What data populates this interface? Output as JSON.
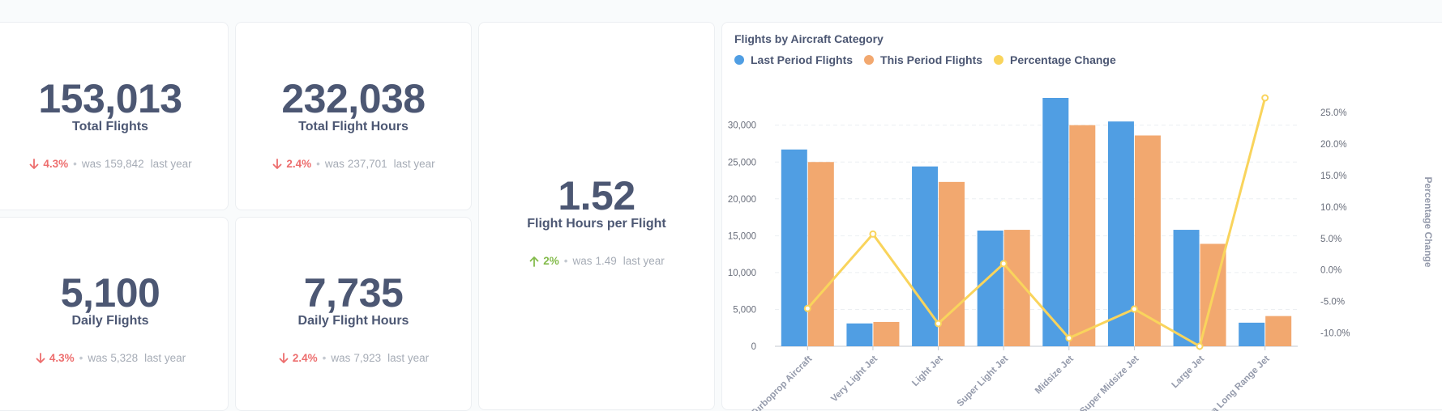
{
  "kpis": {
    "total_flights": {
      "value": "153,013",
      "label": "Total Flights",
      "pct": "4.3%",
      "direction": "down",
      "was_prefix": "was",
      "was_value": "159,842",
      "period": "last year"
    },
    "total_flight_hours": {
      "value": "232,038",
      "label": "Total Flight Hours",
      "pct": "2.4%",
      "direction": "down",
      "was_prefix": "was",
      "was_value": "237,701",
      "period": "last year"
    },
    "daily_flights": {
      "value": "5,100",
      "label": "Daily Flights",
      "pct": "4.3%",
      "direction": "down",
      "was_prefix": "was",
      "was_value": "5,328",
      "period": "last year"
    },
    "daily_flight_hours": {
      "value": "7,735",
      "label": "Daily Flight Hours",
      "pct": "2.4%",
      "direction": "down",
      "was_prefix": "was",
      "was_value": "7,923",
      "period": "last year"
    },
    "hours_per_flight": {
      "value": "1.52",
      "label": "Flight Hours per Flight",
      "pct": "2%",
      "direction": "up",
      "was_prefix": "was",
      "was_value": "1.49",
      "period": "last year"
    }
  },
  "colors": {
    "last_period": "#509ee3",
    "this_period": "#f2a86f",
    "pct_change": "#f9d45c",
    "down": "#ed6e6e",
    "up": "#84bb4c"
  },
  "chart_data": {
    "type": "bar",
    "title": "Flights by Aircraft Category",
    "categories": [
      "Turboprop Aircraft",
      "Very Light Jet",
      "Light Jet",
      "Super Light Jet",
      "Midsize Jet",
      "Super Midsize Jet",
      "Large Jet",
      "Ultra Long Range Jet"
    ],
    "series": [
      {
        "name": "Last Period Flights",
        "type": "bar",
        "axis": "left",
        "values": [
          26700,
          3100,
          24400,
          15700,
          33700,
          30500,
          15800,
          3200
        ]
      },
      {
        "name": "This Period Flights",
        "type": "bar",
        "axis": "right_none",
        "values": [
          25000,
          3300,
          22300,
          15800,
          30000,
          28600,
          13900,
          4100
        ]
      },
      {
        "name": "Percentage Change",
        "type": "line",
        "axis": "right",
        "values": [
          -6.1,
          5.7,
          -8.5,
          1.0,
          -10.8,
          -6.2,
          -12.1,
          27.3
        ]
      }
    ],
    "ylabel": "",
    "y2label": "Percentage Change",
    "ylim": [
      0,
      33700
    ],
    "yticks": [
      "0",
      "5,000",
      "10,000",
      "15,000",
      "20,000",
      "25,000",
      "30,000"
    ],
    "y2lim": [
      -12.1,
      27.3
    ],
    "y2ticks": [
      "-10.0%",
      "-5.0%",
      "0.0%",
      "5.0%",
      "10.0%",
      "15.0%",
      "20.0%",
      "25.0%"
    ],
    "legend": "top-left",
    "grid": true
  }
}
